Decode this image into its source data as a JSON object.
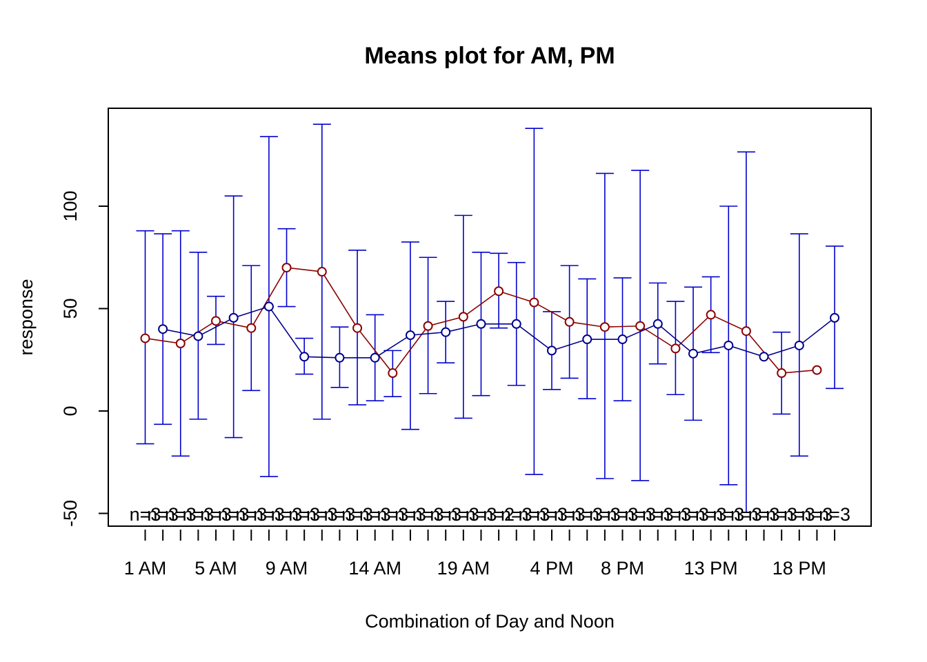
{
  "chart_data": {
    "type": "line",
    "title": "Means plot for AM, PM",
    "xlabel": "Combination of Day and Noon",
    "ylabel": "response",
    "ylim": [
      -55,
      148
    ],
    "y_ticks": [
      -50,
      0,
      50,
      100
    ],
    "x_tick_labels": [
      {
        "index": 1,
        "label": "1 AM"
      },
      {
        "index": 5,
        "label": "5 AM"
      },
      {
        "index": 9,
        "label": "9 AM"
      },
      {
        "index": 14,
        "label": "14 AM"
      },
      {
        "index": 19,
        "label": "19 AM"
      },
      {
        "index": 24,
        "label": "4 PM"
      },
      {
        "index": 28,
        "label": "8 PM"
      },
      {
        "index": 33,
        "label": "13 PM"
      },
      {
        "index": 38,
        "label": "18 PM"
      }
    ],
    "n_positions": 40,
    "n_labels": [
      "n=3",
      "n=3",
      "n=3",
      "n=3",
      "n=3",
      "n=3",
      "n=3",
      "n=3",
      "n=3",
      "n=3",
      "n=3",
      "n=3",
      "n=3",
      "n=3",
      "n=3",
      "n=3",
      "n=3",
      "n=3",
      "n=3",
      "n=3",
      "n=2",
      "n=3",
      "n=3",
      "n=3",
      "n=3",
      "n=3",
      "n=3",
      "n=3",
      "n=3",
      "n=3",
      "n=3",
      "n=3",
      "n=3",
      "n=3",
      "n=3",
      "n=3",
      "n=3",
      "n=3",
      "n=3",
      "n=3"
    ],
    "series": [
      {
        "color": "#8b0000",
        "x": [
          1,
          3,
          5,
          7,
          9,
          11,
          13,
          15,
          17,
          19,
          21,
          23,
          25,
          27,
          29,
          31,
          33,
          35,
          37,
          39
        ],
        "y": [
          35.5,
          33,
          44,
          40.5,
          70,
          68,
          40.5,
          18.5,
          41.5,
          46,
          58.5,
          53,
          43.5,
          41,
          41.5,
          30.5,
          47,
          39,
          18.5,
          20
        ]
      },
      {
        "color": "#00008b",
        "x": [
          2,
          4,
          6,
          8,
          10,
          12,
          14,
          16,
          18,
          20,
          22,
          24,
          26,
          28,
          30,
          32,
          34,
          36,
          38,
          40
        ],
        "y": [
          40,
          36.5,
          45.5,
          51,
          26.5,
          26,
          26,
          37,
          38.5,
          42.5,
          42.5,
          29.5,
          35,
          35,
          42.5,
          28,
          32,
          26.5,
          32,
          45.5
        ]
      }
    ],
    "error_bar_color": "#0000cd",
    "error_bars": [
      {
        "x": 1,
        "lo": -16,
        "hi": 88
      },
      {
        "x": 2,
        "lo": -6.5,
        "hi": 86.5
      },
      {
        "x": 3,
        "lo": -22,
        "hi": 88
      },
      {
        "x": 4,
        "lo": -4,
        "hi": 77.5
      },
      {
        "x": 5,
        "lo": 32.5,
        "hi": 56
      },
      {
        "x": 6,
        "lo": -13,
        "hi": 105
      },
      {
        "x": 7,
        "lo": 10,
        "hi": 71
      },
      {
        "x": 8,
        "lo": -32,
        "hi": 134
      },
      {
        "x": 9,
        "lo": 51,
        "hi": 89
      },
      {
        "x": 10,
        "lo": 18,
        "hi": 35.5
      },
      {
        "x": 11,
        "lo": -4,
        "hi": 140
      },
      {
        "x": 12,
        "lo": 11.5,
        "hi": 41
      },
      {
        "x": 13,
        "lo": 3,
        "hi": 78.5
      },
      {
        "x": 14,
        "lo": 5,
        "hi": 47
      },
      {
        "x": 15,
        "lo": 7,
        "hi": 29.5
      },
      {
        "x": 16,
        "lo": -9,
        "hi": 82.5
      },
      {
        "x": 17,
        "lo": 8.5,
        "hi": 75
      },
      {
        "x": 18,
        "lo": 23.5,
        "hi": 53.5
      },
      {
        "x": 19,
        "lo": -3.5,
        "hi": 95.5
      },
      {
        "x": 20,
        "lo": 7.5,
        "hi": 77.5
      },
      {
        "x": 21,
        "lo": 40.5,
        "hi": 77
      },
      {
        "x": 22,
        "lo": 12.5,
        "hi": 72.5
      },
      {
        "x": 23,
        "lo": -31,
        "hi": 138
      },
      {
        "x": 24,
        "lo": 10.5,
        "hi": 48.5
      },
      {
        "x": 25,
        "lo": 16,
        "hi": 71
      },
      {
        "x": 26,
        "lo": 6,
        "hi": 64.5
      },
      {
        "x": 27,
        "lo": -33,
        "hi": 116
      },
      {
        "x": 28,
        "lo": 5,
        "hi": 65
      },
      {
        "x": 29,
        "lo": -34,
        "hi": 117.5
      },
      {
        "x": 30,
        "lo": 23,
        "hi": 62.5
      },
      {
        "x": 31,
        "lo": 8,
        "hi": 53.5
      },
      {
        "x": 32,
        "lo": -4.5,
        "hi": 60.5
      },
      {
        "x": 33,
        "lo": 28.5,
        "hi": 65.5
      },
      {
        "x": 34,
        "lo": -36,
        "hi": 100
      },
      {
        "x": 35,
        "lo": -50,
        "hi": 126.5
      },
      {
        "x": 37,
        "lo": -1.5,
        "hi": 38.5
      },
      {
        "x": 38,
        "lo": -22,
        "hi": 86.5
      },
      {
        "x": 40,
        "lo": 11,
        "hi": 80.5
      }
    ],
    "grid": false,
    "legend": "none"
  }
}
